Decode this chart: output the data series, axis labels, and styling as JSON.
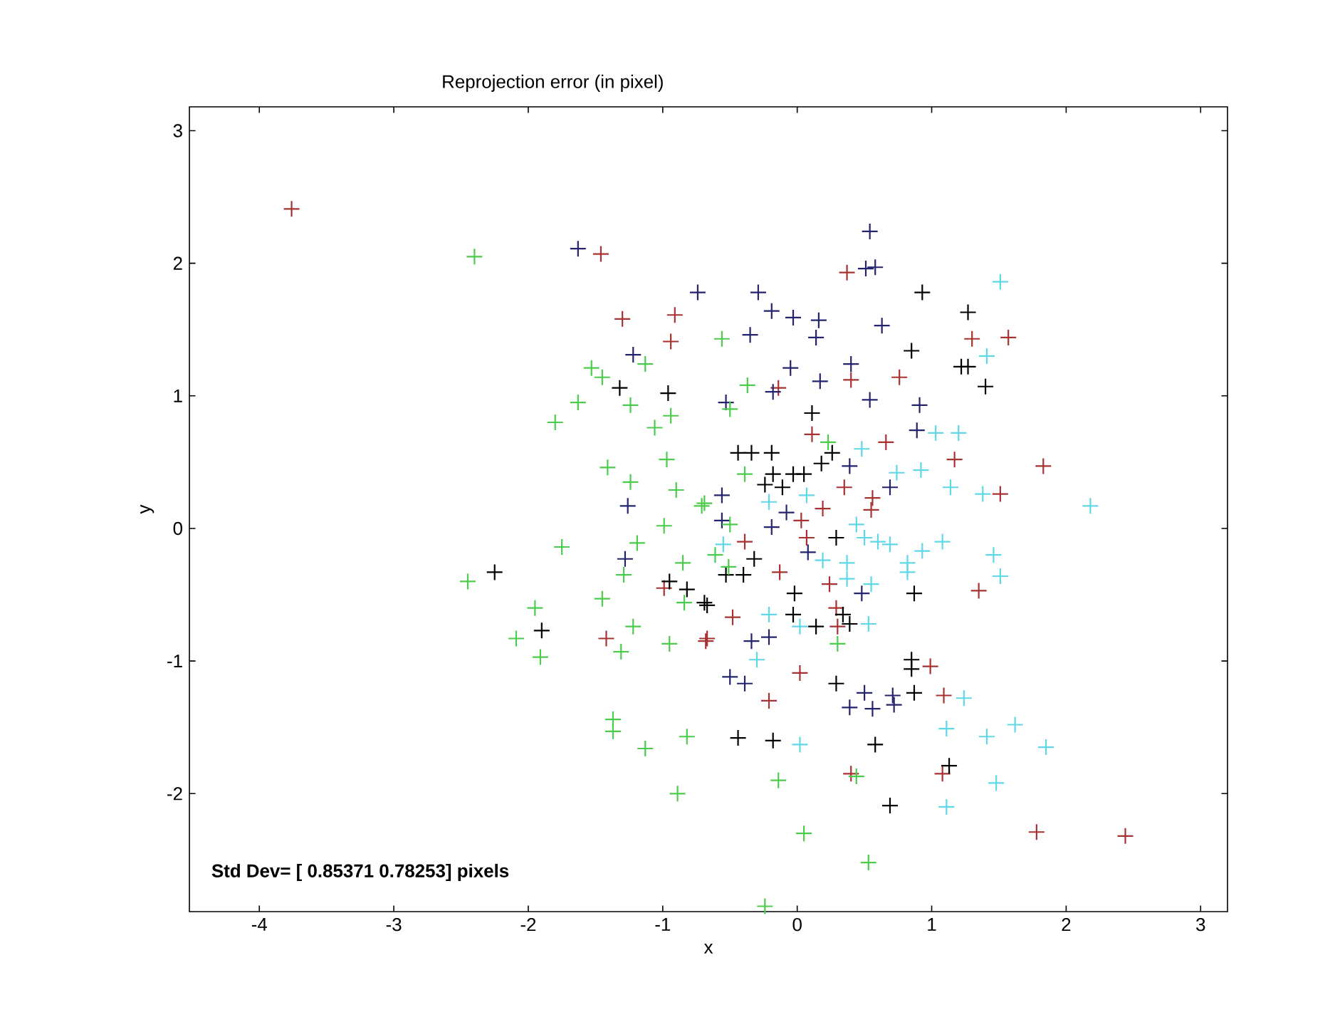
{
  "chart_data": {
    "type": "scatter",
    "title": "Reprojection error (in pixel)",
    "xlabel": "x",
    "ylabel": "y",
    "annotations": [
      "Std Dev= [ 0.85371 0.78253] pixels"
    ],
    "xlim": [
      -4.52,
      3.2
    ],
    "ylim": [
      -2.89,
      3.18
    ],
    "xticks": [
      -4,
      -3,
      -2,
      -1,
      0,
      1,
      2,
      3
    ],
    "yticks": [
      -2,
      -1,
      0,
      1,
      2,
      3
    ],
    "grid": false,
    "marker": "cross",
    "series": [
      {
        "color": "#a83232",
        "x": [
          -3.76,
          -1.46,
          -1.3,
          -0.91,
          -0.94,
          0.37,
          1.3,
          1.57,
          -0.14,
          0.4,
          0.76,
          0.11,
          0.66,
          1.17,
          1.83,
          1.51,
          0.35,
          0.56,
          0.19,
          0.55,
          0.03,
          -0.39,
          0.07,
          -0.13,
          0.24,
          1.35,
          -0.48,
          0.29,
          -0.67,
          0.3,
          0.02,
          0.99,
          -0.21,
          1.09,
          0.4,
          1.08,
          1.78,
          2.44,
          -0.99,
          -1.42,
          -0.68
        ],
        "values": [
          2.41,
          2.07,
          1.58,
          1.61,
          1.41,
          1.93,
          1.43,
          1.44,
          1.06,
          1.12,
          1.14,
          0.71,
          0.65,
          0.52,
          0.47,
          0.26,
          0.31,
          0.23,
          0.15,
          0.14,
          0.06,
          -0.1,
          -0.07,
          -0.33,
          -0.42,
          -0.47,
          -0.67,
          -0.6,
          -0.83,
          -0.74,
          -1.09,
          -1.04,
          -1.3,
          -1.26,
          -1.85,
          -1.85,
          -2.29,
          -2.32,
          -0.45,
          -0.83,
          -0.85
        ]
      },
      {
        "color": "#23236e",
        "x": [
          -1.63,
          -0.74,
          -1.22,
          -1.26,
          0.54,
          0.51,
          0.58,
          -0.29,
          -0.19,
          -0.03,
          0.16,
          -0.35,
          0.14,
          0.63,
          -0.05,
          0.4,
          0.17,
          -0.18,
          0.54,
          0.91,
          -0.53,
          0.89,
          0.39,
          -0.56,
          0.69,
          -0.08,
          -0.56,
          -0.19,
          0.08,
          0.48,
          -0.34,
          -0.21,
          -0.5,
          -0.39,
          0.5,
          0.39,
          0.56,
          0.71,
          0.72,
          -1.28
        ],
        "values": [
          2.11,
          1.78,
          1.31,
          0.17,
          2.24,
          1.96,
          1.97,
          1.78,
          1.64,
          1.59,
          1.57,
          1.46,
          1.44,
          1.53,
          1.21,
          1.24,
          1.11,
          1.03,
          0.97,
          0.93,
          0.95,
          0.74,
          0.47,
          0.25,
          0.31,
          0.12,
          0.06,
          0.01,
          -0.18,
          -0.49,
          -0.85,
          -0.82,
          -1.12,
          -1.17,
          -1.24,
          -1.35,
          -1.36,
          -1.26,
          -1.33,
          -0.23
        ]
      },
      {
        "color": "#000000",
        "x": [
          -1.32,
          -0.96,
          0.93,
          1.27,
          0.85,
          1.22,
          1.27,
          1.4,
          0.11,
          -0.44,
          -0.34,
          -0.19,
          -0.24,
          -0.18,
          -0.03,
          0.05,
          0.18,
          0.26,
          -0.11,
          0.29,
          -0.32,
          -0.53,
          -0.4,
          -0.02,
          0.87,
          -0.67,
          -0.03,
          0.14,
          0.34,
          0.39,
          0.85,
          0.85,
          0.29,
          0.87,
          1.13,
          -0.44,
          -0.18,
          0.58,
          0.69,
          -2.25,
          -1.9,
          -0.95,
          -0.82,
          -0.69
        ],
        "values": [
          1.06,
          1.02,
          1.78,
          1.63,
          1.34,
          1.22,
          1.22,
          1.07,
          0.87,
          0.57,
          0.57,
          0.57,
          0.33,
          0.41,
          0.41,
          0.41,
          0.49,
          0.57,
          0.31,
          -0.07,
          -0.23,
          -0.35,
          -0.35,
          -0.49,
          -0.49,
          -0.58,
          -0.65,
          -0.74,
          -0.65,
          -0.72,
          -0.99,
          -1.06,
          -1.17,
          -1.24,
          -1.79,
          -1.58,
          -1.6,
          -1.63,
          -2.09,
          -0.33,
          -0.77,
          -0.4,
          -0.46,
          -0.56
        ]
      },
      {
        "color": "#5fd7e6",
        "x": [
          1.51,
          1.41,
          1.03,
          1.2,
          0.48,
          0.74,
          0.92,
          1.14,
          1.38,
          2.18,
          0.07,
          -0.21,
          0.44,
          0.5,
          0.6,
          0.69,
          1.08,
          0.93,
          0.82,
          0.82,
          1.46,
          1.51,
          0.19,
          0.37,
          0.37,
          0.55,
          -0.21,
          0.02,
          0.53,
          -0.3,
          -0.55,
          1.24,
          1.11,
          1.41,
          1.62,
          1.85,
          0.02,
          1.48,
          1.11
        ],
        "values": [
          1.86,
          1.3,
          0.72,
          0.72,
          0.6,
          0.42,
          0.44,
          0.31,
          0.26,
          0.17,
          0.25,
          0.2,
          0.03,
          -0.07,
          -0.1,
          -0.12,
          -0.1,
          -0.17,
          -0.26,
          -0.33,
          -0.2,
          -0.36,
          -0.24,
          -0.26,
          -0.38,
          -0.42,
          -0.65,
          -0.74,
          -0.72,
          -0.99,
          -0.12,
          -1.28,
          -1.51,
          -1.57,
          -1.48,
          -1.65,
          -1.63,
          -1.92,
          -2.1
        ]
      },
      {
        "color": "#4ccc4c",
        "x": [
          -2.4,
          -1.53,
          -1.45,
          -1.13,
          -1.63,
          -1.8,
          -1.24,
          -1.06,
          -0.94,
          -1.41,
          -1.24,
          -0.97,
          -0.9,
          -0.71,
          -0.56,
          -0.37,
          -0.5,
          0.23,
          -0.39,
          -0.69,
          -0.99,
          -1.19,
          -1.75,
          -0.85,
          -1.29,
          -2.45,
          -1.45,
          -0.84,
          -1.95,
          -1.22,
          -2.09,
          -1.91,
          -1.31,
          -0.95,
          -1.37,
          -1.37,
          -1.13,
          -0.82,
          -0.89,
          -0.61,
          -0.5,
          -0.51,
          0.3,
          -0.14,
          0.44,
          0.05,
          0.53,
          -0.24
        ],
        "values": [
          2.05,
          1.21,
          1.14,
          1.24,
          0.95,
          0.8,
          0.93,
          0.76,
          0.85,
          0.46,
          0.35,
          0.52,
          0.29,
          0.17,
          1.43,
          1.08,
          0.9,
          0.65,
          0.41,
          0.19,
          0.02,
          -0.11,
          -0.14,
          -0.26,
          -0.35,
          -0.4,
          -0.53,
          -0.56,
          -0.6,
          -0.74,
          -0.83,
          -0.97,
          -0.93,
          -0.87,
          -1.44,
          -1.53,
          -1.66,
          -1.57,
          -2.0,
          -0.2,
          0.03,
          -0.29,
          -0.87,
          -1.9,
          -1.87,
          -2.3,
          -2.52,
          -2.85
        ]
      }
    ]
  }
}
